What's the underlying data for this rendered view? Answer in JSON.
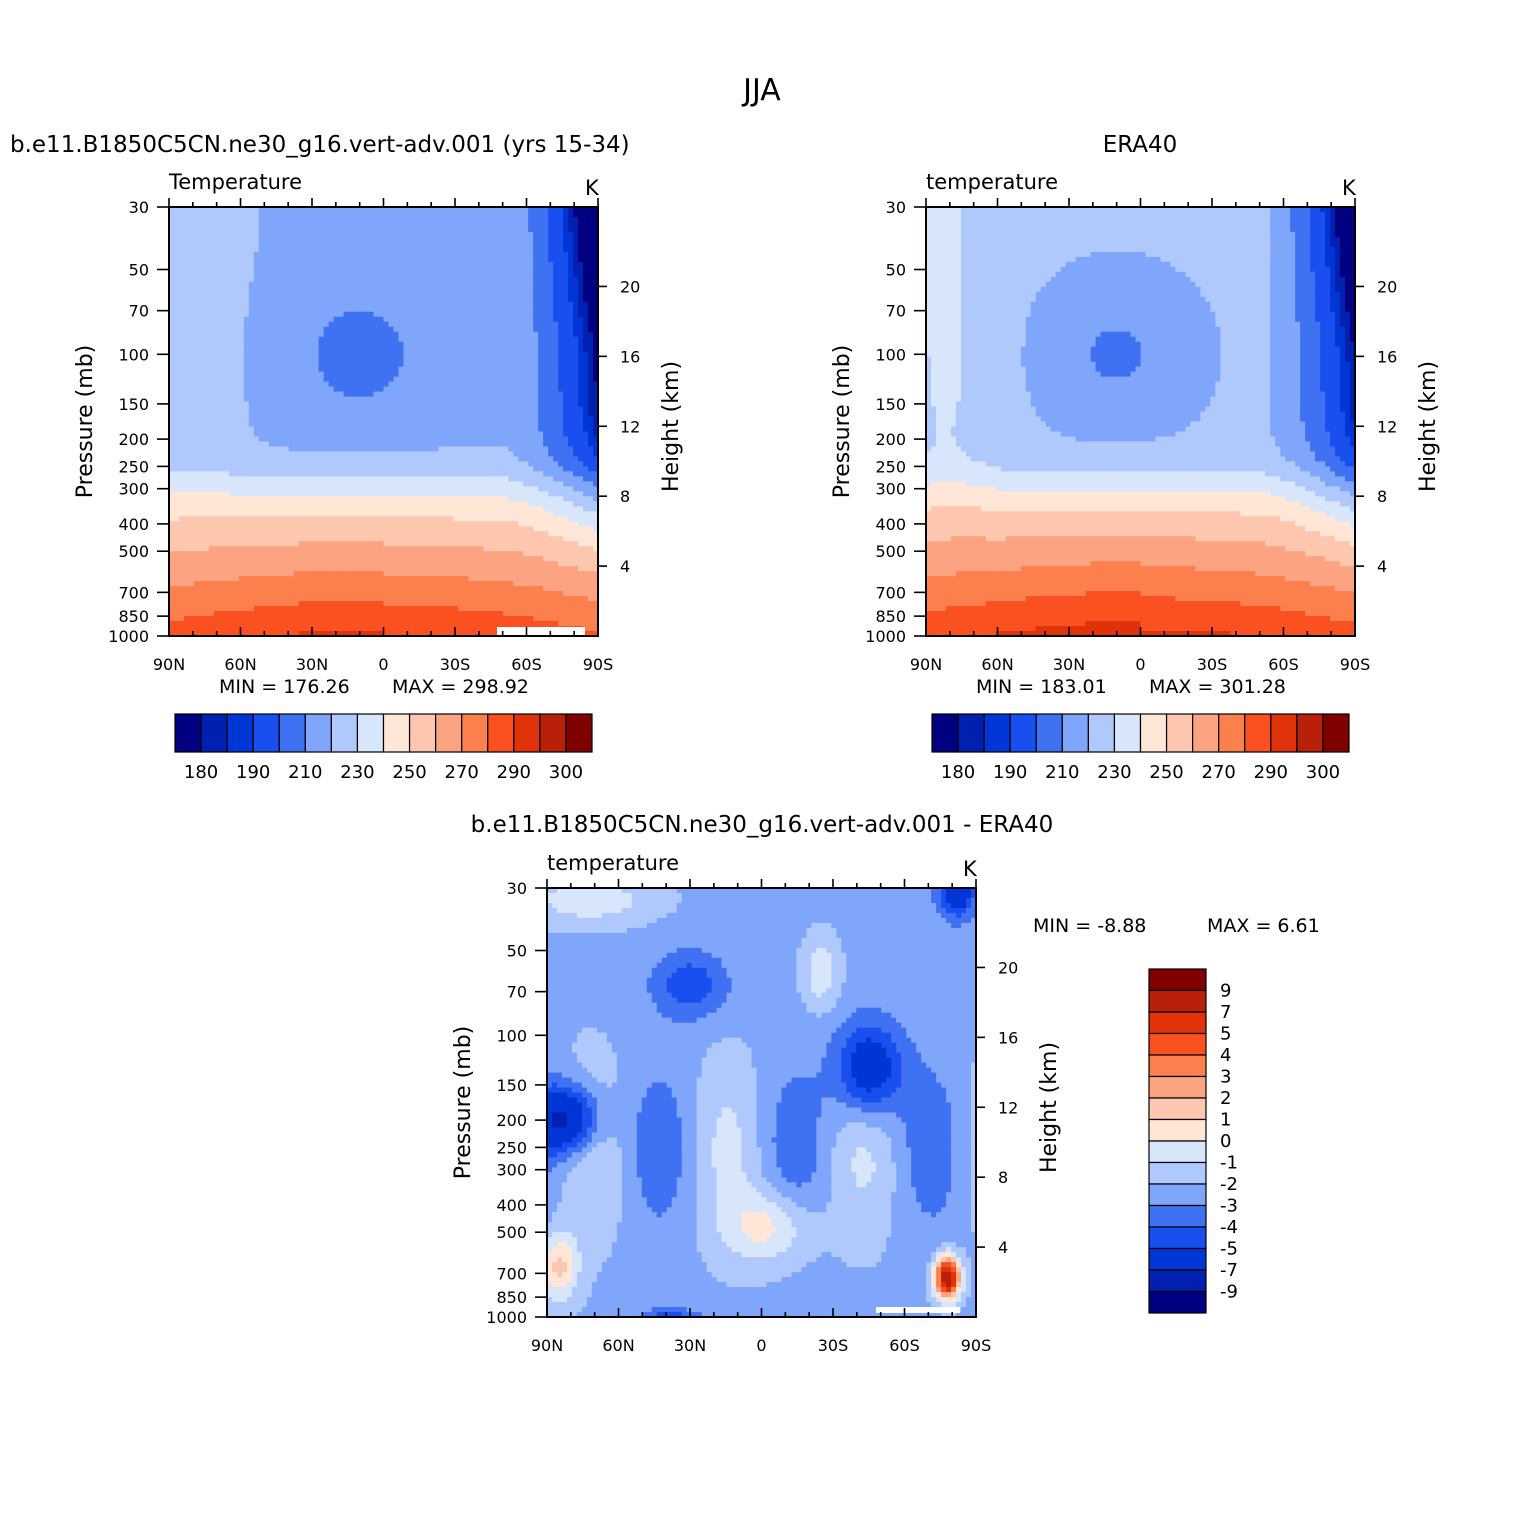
{
  "figure": {
    "title": "JJA",
    "colors": {
      "background": "#ffffff",
      "missing": "#ffffff",
      "axes": "#000000"
    }
  },
  "chart_data": [
    {
      "id": "model",
      "type": "heatmap",
      "title": "b.e11.B1850C5CN.ne30_g16.vert-adv.001 (yrs 15-34)",
      "left_string": "Temperature",
      "right_string": "K",
      "xlabel": "",
      "ylabel": "Pressure (mb)",
      "y2label": "Height (km)",
      "x_ticks": [
        "90N",
        "60N",
        "30N",
        "0",
        "30S",
        "60S",
        "90S"
      ],
      "x_values": [
        90,
        60,
        30,
        0,
        -30,
        -60,
        -90
      ],
      "y_ticks": [
        "30",
        "50",
        "70",
        "100",
        "150",
        "200",
        "250",
        "300",
        "400",
        "500",
        "700",
        "850",
        "1000"
      ],
      "y_values": [
        30,
        50,
        70,
        100,
        150,
        200,
        250,
        300,
        400,
        500,
        700,
        850,
        1000
      ],
      "y_scale": "log",
      "y2_ticks": [
        "20",
        "16",
        "12",
        "8",
        "4"
      ],
      "y2_values": [
        20,
        16,
        12,
        8,
        4
      ],
      "xlim": [
        90,
        -90
      ],
      "ylim": [
        30,
        1000
      ],
      "min_label": "MIN = 176.26",
      "max_label": "MAX = 298.92",
      "min": 176.26,
      "max": 298.92,
      "levels": [
        180,
        185,
        190,
        200,
        210,
        220,
        230,
        240,
        250,
        260,
        270,
        280,
        290,
        295,
        300
      ],
      "colorbar": {
        "orientation": "horizontal",
        "labels": [
          "180",
          "190",
          "210",
          "230",
          "250",
          "270",
          "290",
          "300"
        ]
      },
      "colors": [
        "#000080",
        "#0020b0",
        "#0035d6",
        "#1a4fef",
        "#3f72f2",
        "#7fa6fb",
        "#b0c9fd",
        "#d8e6fb",
        "#ffe6d6",
        "#fdc6ae",
        "#fca482",
        "#fc7f4e",
        "#fb5020",
        "#e0330b",
        "#b8200a",
        "#800000"
      ]
    },
    {
      "id": "obs",
      "type": "heatmap",
      "title": "ERA40",
      "left_string": "temperature",
      "right_string": "K",
      "xlabel": "",
      "ylabel": "Pressure (mb)",
      "y2label": "Height (km)",
      "x_ticks": [
        "90N",
        "60N",
        "30N",
        "0",
        "30S",
        "60S",
        "90S"
      ],
      "x_values": [
        90,
        60,
        30,
        0,
        -30,
        -60,
        -90
      ],
      "y_ticks": [
        "30",
        "50",
        "70",
        "100",
        "150",
        "200",
        "250",
        "300",
        "400",
        "500",
        "700",
        "850",
        "1000"
      ],
      "y_values": [
        30,
        50,
        70,
        100,
        150,
        200,
        250,
        300,
        400,
        500,
        700,
        850,
        1000
      ],
      "y_scale": "log",
      "y2_ticks": [
        "20",
        "16",
        "12",
        "8",
        "4"
      ],
      "y2_values": [
        20,
        16,
        12,
        8,
        4
      ],
      "xlim": [
        90,
        -90
      ],
      "ylim": [
        30,
        1000
      ],
      "min_label": "MIN = 183.01",
      "max_label": "MAX = 301.28",
      "min": 183.01,
      "max": 301.28,
      "levels": [
        180,
        185,
        190,
        200,
        210,
        220,
        230,
        240,
        250,
        260,
        270,
        280,
        290,
        295,
        300
      ],
      "colorbar": {
        "orientation": "horizontal",
        "labels": [
          "180",
          "190",
          "210",
          "230",
          "250",
          "270",
          "290",
          "300"
        ]
      },
      "colors": [
        "#000080",
        "#0020b0",
        "#0035d6",
        "#1a4fef",
        "#3f72f2",
        "#7fa6fb",
        "#b0c9fd",
        "#d8e6fb",
        "#ffe6d6",
        "#fdc6ae",
        "#fca482",
        "#fc7f4e",
        "#fb5020",
        "#e0330b",
        "#b8200a",
        "#800000"
      ]
    },
    {
      "id": "diff",
      "type": "heatmap",
      "title": "b.e11.B1850C5CN.ne30_g16.vert-adv.001 - ERA40",
      "left_string": "temperature",
      "right_string": "K",
      "xlabel": "",
      "ylabel": "Pressure (mb)",
      "y2label": "Height (km)",
      "x_ticks": [
        "90N",
        "60N",
        "30N",
        "0",
        "30S",
        "60S",
        "90S"
      ],
      "x_values": [
        90,
        60,
        30,
        0,
        -30,
        -60,
        -90
      ],
      "y_ticks": [
        "30",
        "50",
        "70",
        "100",
        "150",
        "200",
        "250",
        "300",
        "400",
        "500",
        "700",
        "850",
        "1000"
      ],
      "y_values": [
        30,
        50,
        70,
        100,
        150,
        200,
        250,
        300,
        400,
        500,
        700,
        850,
        1000
      ],
      "y_scale": "log",
      "y2_ticks": [
        "20",
        "16",
        "12",
        "8",
        "4"
      ],
      "y2_values": [
        20,
        16,
        12,
        8,
        4
      ],
      "xlim": [
        90,
        -90
      ],
      "ylim": [
        30,
        1000
      ],
      "min_label": "MIN = -8.88",
      "max_label": "MAX = 6.61",
      "min": -8.88,
      "max": 6.61,
      "levels": [
        -9,
        -7,
        -5,
        -4,
        -3,
        -2,
        -1,
        0,
        1,
        2,
        3,
        4,
        5,
        7,
        9
      ],
      "colorbar": {
        "orientation": "vertical",
        "labels": [
          "9",
          "7",
          "5",
          "4",
          "3",
          "2",
          "1",
          "0",
          "-1",
          "-2",
          "-3",
          "-4",
          "-5",
          "-7",
          "-9"
        ]
      },
      "colors": [
        "#000080",
        "#0020b0",
        "#0035d6",
        "#1a4fef",
        "#3f72f2",
        "#7fa6fb",
        "#b0c9fd",
        "#d8e6fb",
        "#ffe6d6",
        "#fdc6ae",
        "#fca482",
        "#fc7f4e",
        "#fb5020",
        "#e0330b",
        "#b8200a",
        "#800000"
      ]
    }
  ]
}
